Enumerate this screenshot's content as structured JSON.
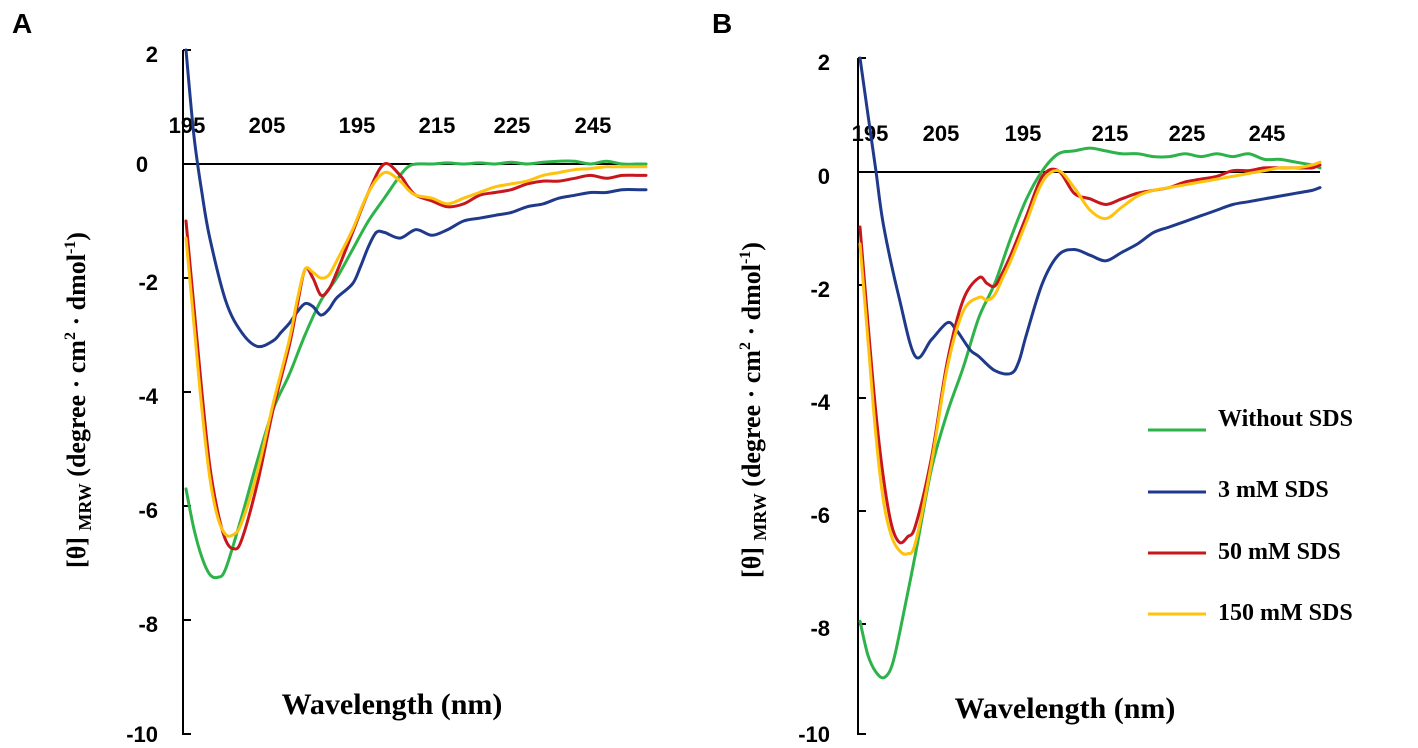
{
  "chart_data": [
    {
      "type": "line",
      "panel": "A",
      "xlabel": "Wavelength (nm)",
      "ylabel": "[θ] MRW (degree · cm2 · dmol-1)",
      "ylabel_parts": {
        "theta": "[θ]",
        "sub": "MRW",
        "main": "(degree · cm",
        "exp1": "2",
        "mid": " · dmol",
        "exp2": "-1",
        "close": ")"
      },
      "ylim": [
        -10,
        2
      ],
      "yticks": [
        "2",
        "-2",
        "-4",
        "-6",
        "-8",
        "-10"
      ],
      "xlim": [
        195,
        253
      ],
      "xtick_labels": [
        "195",
        "205",
        "195",
        "215",
        "225",
        "245"
      ],
      "series": [
        {
          "name": "Without SDS",
          "color": "#2db34a",
          "x": [
            195,
            196,
            197,
            198,
            199,
            200,
            202,
            204,
            206,
            208,
            210,
            212,
            214,
            216,
            218,
            220,
            222,
            223,
            224,
            226,
            228,
            230,
            232,
            234,
            236,
            238,
            240,
            242,
            244,
            246,
            248,
            250,
            252,
            253
          ],
          "y": [
            -5.7,
            -6.4,
            -6.9,
            -7.2,
            -7.25,
            -7.1,
            -6.2,
            -5.2,
            -4.3,
            -3.7,
            -3.0,
            -2.4,
            -2.0,
            -1.5,
            -1.0,
            -0.6,
            -0.2,
            -0.05,
            0.0,
            0.0,
            0.02,
            0.0,
            0.02,
            0.0,
            0.03,
            0.0,
            0.03,
            0.05,
            0.05,
            0.0,
            0.05,
            0.0,
            0.0,
            0.0
          ]
        },
        {
          "name": "3 mM SDS",
          "color": "#1f3a8a",
          "x": [
            195,
            196,
            197,
            198,
            200,
            202,
            204,
            206,
            207,
            208,
            209,
            210,
            211,
            212,
            213,
            214,
            216,
            217,
            218,
            219,
            220,
            222,
            224,
            226,
            228,
            230,
            232,
            234,
            236,
            238,
            240,
            242,
            244,
            246,
            248,
            250,
            252,
            253
          ],
          "y": [
            2.0,
            0.5,
            -0.5,
            -1.3,
            -2.4,
            -2.95,
            -3.2,
            -3.1,
            -2.95,
            -2.8,
            -2.6,
            -2.45,
            -2.5,
            -2.65,
            -2.55,
            -2.35,
            -2.1,
            -1.8,
            -1.45,
            -1.2,
            -1.2,
            -1.3,
            -1.15,
            -1.25,
            -1.15,
            -1.0,
            -0.95,
            -0.9,
            -0.85,
            -0.75,
            -0.7,
            -0.6,
            -0.55,
            -0.5,
            -0.5,
            -0.45,
            -0.45,
            -0.45
          ]
        },
        {
          "name": "50 mM SDS",
          "color": "#c8161d",
          "x": [
            195,
            196,
            197,
            198,
            199,
            200,
            201,
            202,
            204,
            206,
            208,
            209,
            210,
            211,
            212,
            213,
            214,
            216,
            218,
            220,
            222,
            223,
            224,
            226,
            228,
            230,
            232,
            234,
            236,
            238,
            240,
            242,
            244,
            246,
            248,
            250,
            252,
            253
          ],
          "y": [
            -1.0,
            -2.5,
            -4.0,
            -5.3,
            -6.1,
            -6.6,
            -6.75,
            -6.6,
            -5.6,
            -4.3,
            -3.2,
            -2.5,
            -1.85,
            -2.0,
            -2.3,
            -2.2,
            -1.9,
            -1.2,
            -0.5,
            0.0,
            -0.2,
            -0.4,
            -0.55,
            -0.65,
            -0.75,
            -0.7,
            -0.55,
            -0.5,
            -0.45,
            -0.35,
            -0.3,
            -0.3,
            -0.25,
            -0.2,
            -0.25,
            -0.2,
            -0.2,
            -0.2
          ]
        },
        {
          "name": "150 mM SDS",
          "color": "#ffc20e",
          "x": [
            195,
            196,
            197,
            198,
            199,
            200,
            201,
            202,
            204,
            206,
            208,
            209,
            210,
            211,
            212,
            213,
            214,
            216,
            218,
            220,
            222,
            223,
            224,
            226,
            228,
            230,
            232,
            234,
            236,
            238,
            240,
            242,
            244,
            246,
            248,
            250,
            252,
            253
          ],
          "y": [
            -1.3,
            -2.8,
            -4.3,
            -5.5,
            -6.2,
            -6.5,
            -6.5,
            -6.3,
            -5.4,
            -4.2,
            -3.1,
            -2.4,
            -1.85,
            -1.9,
            -2.0,
            -1.95,
            -1.7,
            -1.15,
            -0.5,
            -0.15,
            -0.3,
            -0.45,
            -0.55,
            -0.6,
            -0.7,
            -0.6,
            -0.5,
            -0.4,
            -0.35,
            -0.3,
            -0.2,
            -0.15,
            -0.1,
            -0.08,
            -0.05,
            -0.05,
            -0.05,
            -0.05
          ]
        }
      ]
    },
    {
      "type": "line",
      "panel": "B",
      "xlabel": "Wavelength (nm)",
      "ylabel": "[θ] MRW (degree · cm2 · dmol-1)",
      "ylabel_parts": {
        "theta": "[θ]",
        "sub": "MRW",
        "main": "(degree · cm",
        "exp1": "2",
        "mid": " · dmol",
        "exp2": "-1",
        "close": ")"
      },
      "ylim": [
        -10,
        2
      ],
      "yticks": [
        "2",
        "0",
        "-2",
        "-4",
        "-6",
        "-8",
        "-10"
      ],
      "xlim": [
        195,
        253
      ],
      "xtick_labels": [
        "195",
        "205",
        "195",
        "215",
        "225",
        "245"
      ],
      "legend": {
        "position": "right",
        "entries": [
          "Without SDS",
          "3 mM  SDS",
          "50 mM  SDS",
          "150 mM  SDS"
        ]
      },
      "series": [
        {
          "name": "Without SDS",
          "color": "#2db34a",
          "x": [
            195,
            196,
            197,
            198,
            199,
            200,
            202,
            204,
            206,
            208,
            210,
            212,
            214,
            216,
            218,
            220,
            222,
            224,
            226,
            228,
            230,
            232,
            234,
            236,
            238,
            240,
            242,
            244,
            246,
            248,
            250,
            252,
            253
          ],
          "y": [
            -8.0,
            -8.6,
            -8.9,
            -9.0,
            -8.8,
            -8.2,
            -6.8,
            -5.3,
            -4.3,
            -3.5,
            -2.6,
            -2.0,
            -1.2,
            -0.5,
            0.0,
            0.3,
            0.35,
            0.4,
            0.35,
            0.3,
            0.3,
            0.25,
            0.25,
            0.3,
            0.25,
            0.3,
            0.25,
            0.3,
            0.2,
            0.2,
            0.15,
            0.1,
            0.05
          ]
        },
        {
          "name": "3 mM SDS",
          "color": "#1f3a8a",
          "x": [
            195,
            196,
            197,
            198,
            200,
            202,
            204,
            206,
            207,
            208,
            209,
            210,
            212,
            214,
            215,
            216,
            218,
            220,
            222,
            224,
            226,
            228,
            230,
            232,
            234,
            236,
            238,
            240,
            242,
            244,
            246,
            248,
            250,
            252,
            253
          ],
          "y": [
            2.0,
            1.0,
            0.0,
            -1.0,
            -2.3,
            -3.3,
            -3.0,
            -2.7,
            -2.8,
            -3.0,
            -3.2,
            -3.3,
            -3.55,
            -3.6,
            -3.4,
            -2.9,
            -2.0,
            -1.5,
            -1.4,
            -1.5,
            -1.6,
            -1.45,
            -1.3,
            -1.1,
            -1.0,
            -0.9,
            -0.8,
            -0.7,
            -0.6,
            -0.55,
            -0.5,
            -0.45,
            -0.4,
            -0.35,
            -0.3
          ]
        },
        {
          "name": "50 mM SDS",
          "color": "#c8161d",
          "x": [
            195,
            196,
            197,
            198,
            199,
            200,
            201,
            202,
            204,
            206,
            208,
            210,
            211,
            212,
            213,
            214,
            216,
            218,
            220,
            222,
            224,
            226,
            228,
            230,
            232,
            234,
            236,
            238,
            240,
            242,
            244,
            246,
            248,
            250,
            252,
            253
          ],
          "y": [
            -1.0,
            -2.7,
            -4.3,
            -5.5,
            -6.3,
            -6.6,
            -6.5,
            -6.3,
            -5.1,
            -3.4,
            -2.3,
            -1.9,
            -2.0,
            -2.05,
            -1.8,
            -1.5,
            -0.8,
            -0.1,
            0.0,
            -0.4,
            -0.5,
            -0.6,
            -0.5,
            -0.4,
            -0.35,
            -0.3,
            -0.2,
            -0.15,
            -0.1,
            0.0,
            0.0,
            0.05,
            0.05,
            0.05,
            0.05,
            0.1
          ]
        },
        {
          "name": "150 mM SDS",
          "color": "#ffc20e",
          "x": [
            195,
            196,
            197,
            198,
            199,
            200,
            201,
            202,
            204,
            206,
            208,
            210,
            211,
            212,
            213,
            214,
            216,
            218,
            220,
            222,
            224,
            226,
            228,
            230,
            232,
            234,
            236,
            238,
            240,
            242,
            244,
            246,
            248,
            250,
            252,
            253
          ],
          "y": [
            -1.3,
            -3.0,
            -4.7,
            -5.9,
            -6.5,
            -6.75,
            -6.8,
            -6.6,
            -5.2,
            -3.5,
            -2.5,
            -2.25,
            -2.3,
            -2.2,
            -1.9,
            -1.6,
            -0.9,
            -0.2,
            0.0,
            -0.3,
            -0.7,
            -0.85,
            -0.65,
            -0.45,
            -0.35,
            -0.3,
            -0.25,
            -0.2,
            -0.15,
            -0.1,
            -0.05,
            0.0,
            0.05,
            0.05,
            0.1,
            0.15
          ]
        }
      ]
    }
  ]
}
